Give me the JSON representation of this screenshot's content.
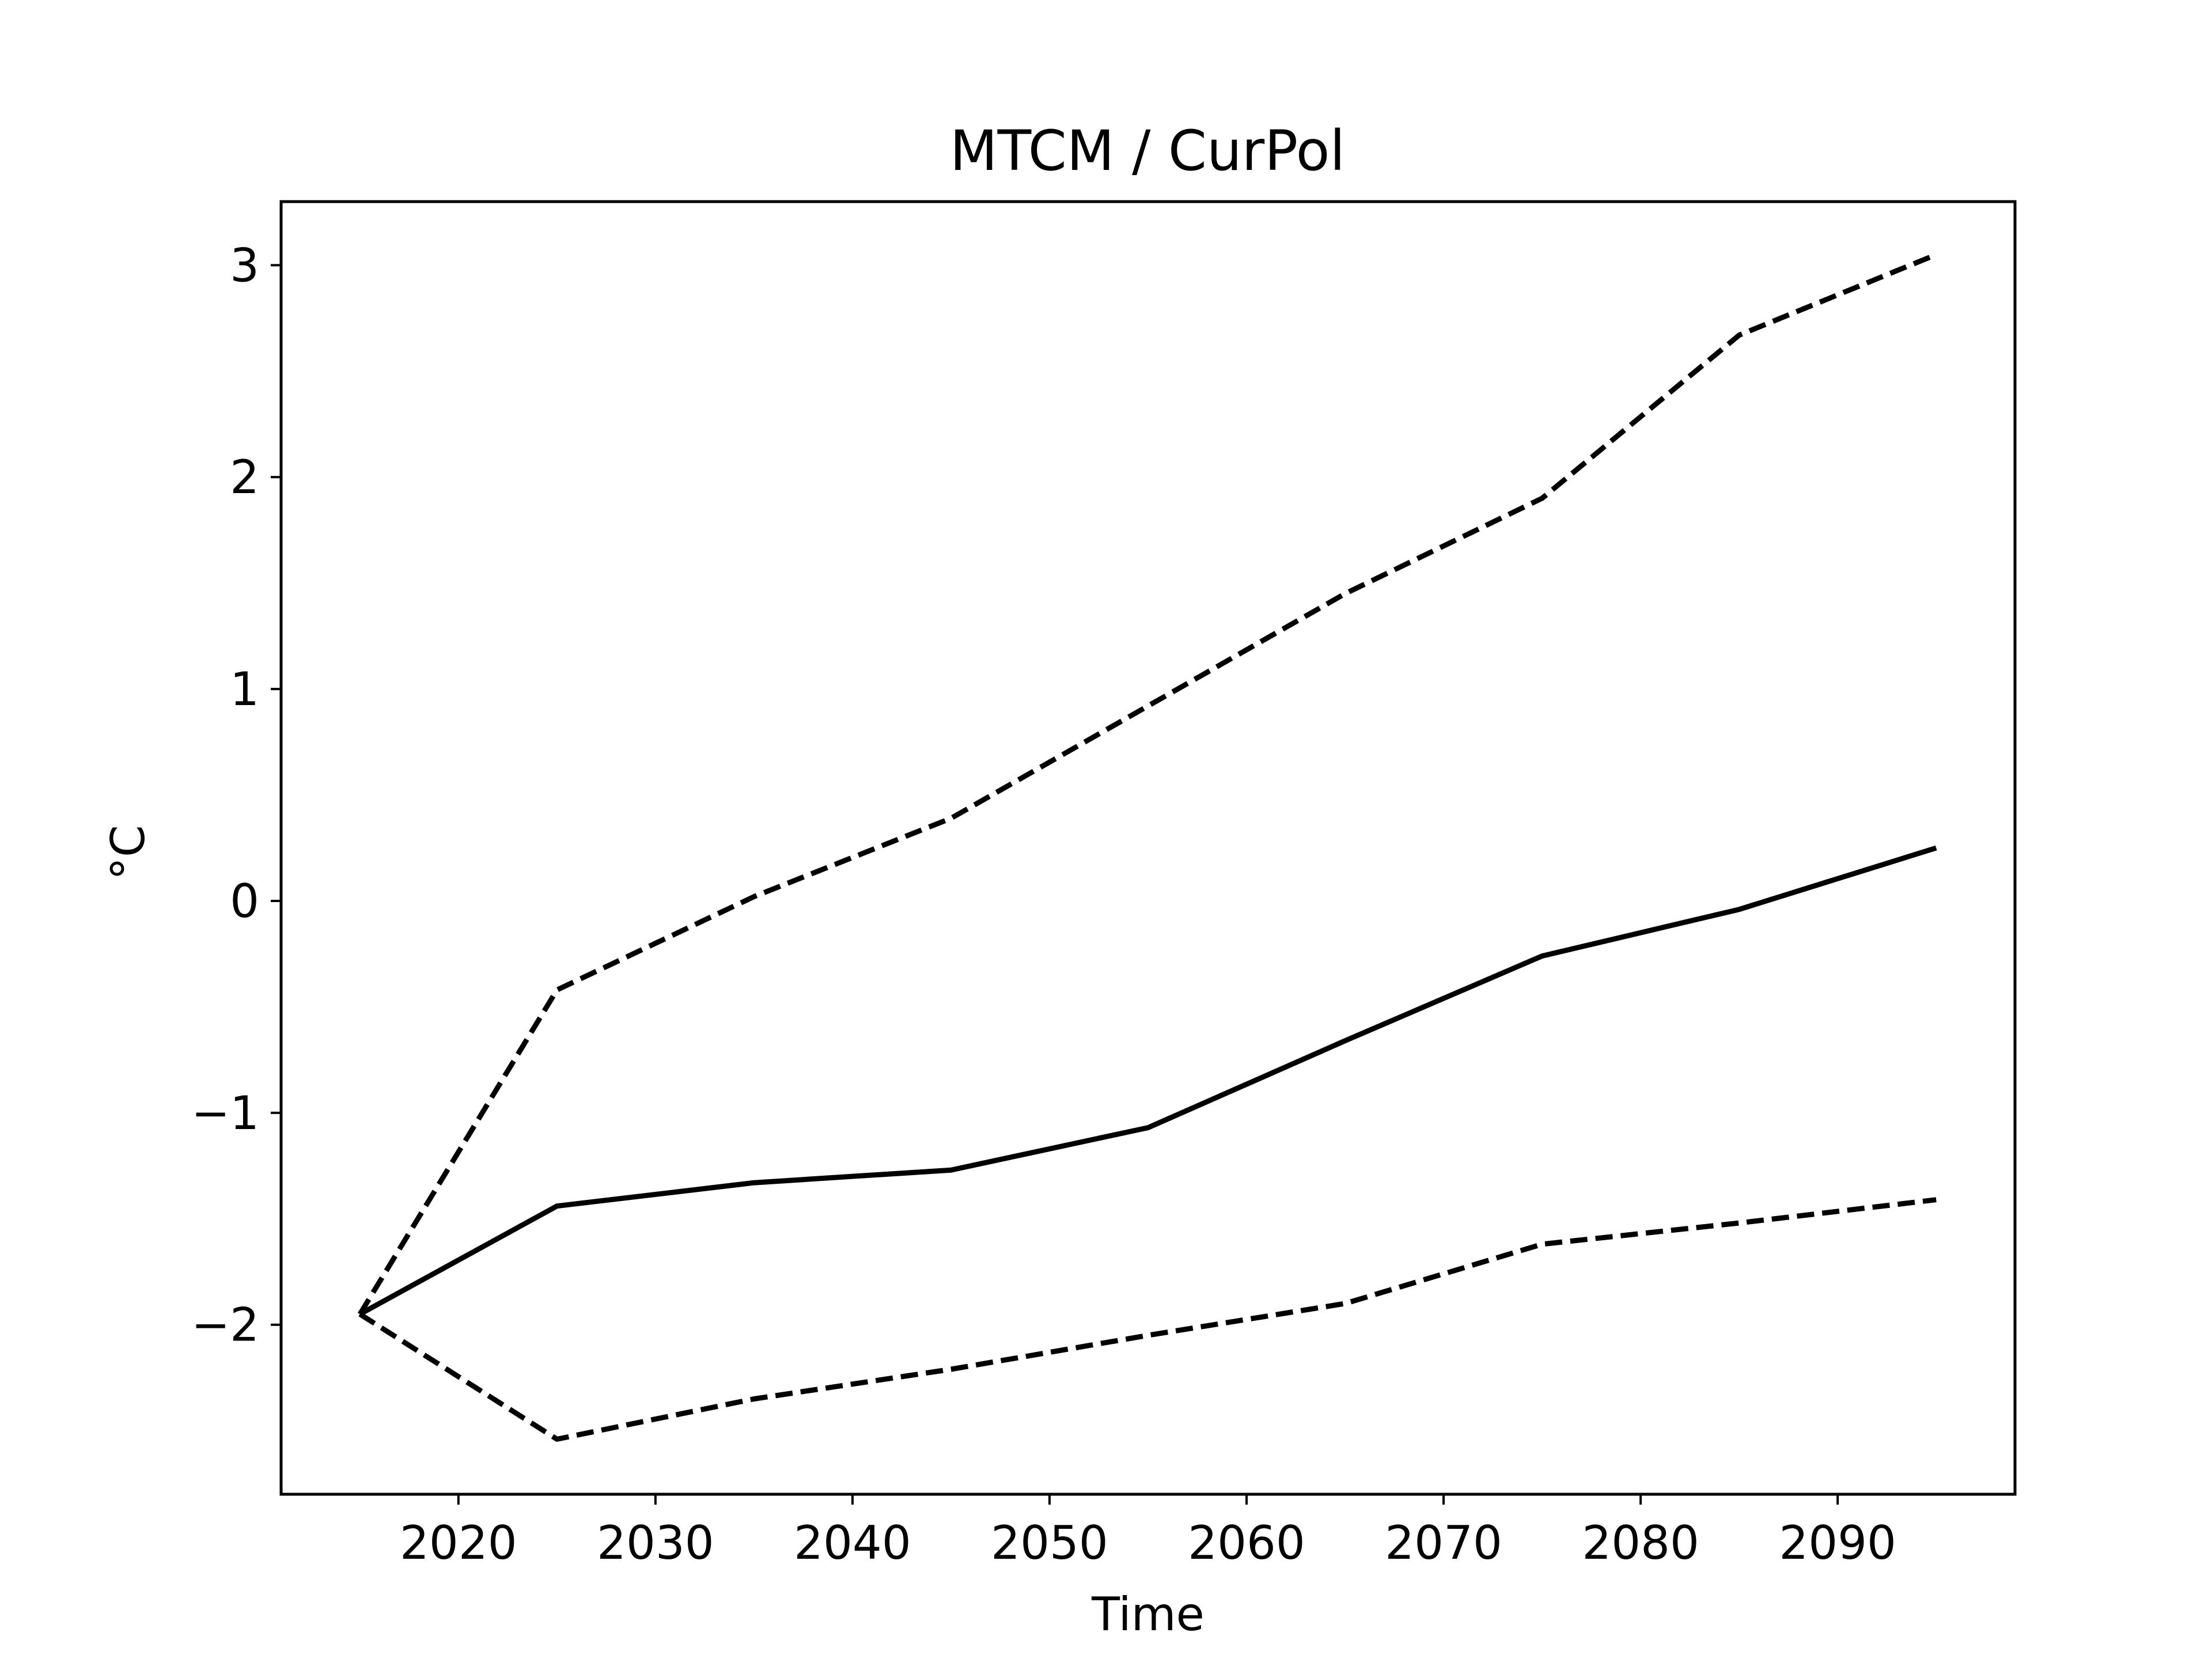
{
  "chart_data": {
    "type": "line",
    "title": "MTCM / CurPol",
    "xlabel": "Time",
    "ylabel": "°C",
    "xlim": [
      2011,
      2099
    ],
    "ylim": [
      -2.8,
      3.3
    ],
    "x_ticks": [
      2020,
      2030,
      2040,
      2050,
      2060,
      2070,
      2080,
      2090
    ],
    "x_tick_labels": [
      "2020",
      "2030",
      "2040",
      "2050",
      "2060",
      "2070",
      "2080",
      "2090"
    ],
    "y_ticks": [
      -2,
      -1,
      0,
      1,
      2,
      3
    ],
    "y_tick_labels": [
      "−2",
      "−1",
      "0",
      "1",
      "2",
      "3"
    ],
    "grid": false,
    "legend": false,
    "x": [
      2015,
      2025,
      2035,
      2045,
      2055,
      2065,
      2075,
      2085,
      2095
    ],
    "series": [
      {
        "style": "solid",
        "color": "#000000",
        "values": [
          -1.95,
          -1.44,
          -1.33,
          -1.27,
          -1.07,
          -0.66,
          -0.26,
          -0.04,
          0.25
        ]
      },
      {
        "style": "dashed",
        "color": "#000000",
        "values": [
          -1.95,
          -0.42,
          0.02,
          0.39,
          0.92,
          1.45,
          1.9,
          2.67,
          3.05
        ]
      },
      {
        "style": "dashed",
        "color": "#000000",
        "values": [
          -1.95,
          -2.54,
          -2.35,
          -2.21,
          -2.05,
          -1.9,
          -1.62,
          -1.52,
          -1.41
        ]
      }
    ]
  }
}
